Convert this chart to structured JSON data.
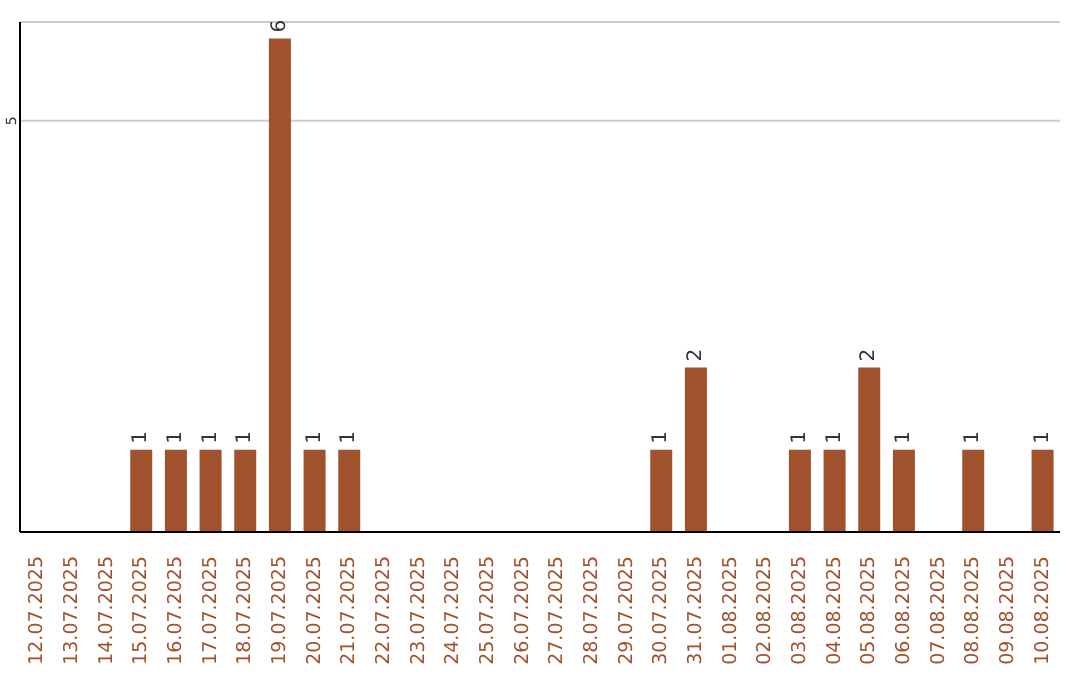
{
  "chart_data": {
    "type": "bar",
    "categories": [
      "12.07.2025",
      "13.07.2025",
      "14.07.2025",
      "15.07.2025",
      "16.07.2025",
      "17.07.2025",
      "18.07.2025",
      "19.07.2025",
      "20.07.2025",
      "21.07.2025",
      "22.07.2025",
      "23.07.2025",
      "24.07.2025",
      "25.07.2025",
      "26.07.2025",
      "27.07.2025",
      "28.07.2025",
      "29.07.2025",
      "30.07.2025",
      "31.07.2025",
      "01.08.2025",
      "02.08.2025",
      "03.08.2025",
      "04.08.2025",
      "05.08.2025",
      "06.08.2025",
      "07.08.2025",
      "08.08.2025",
      "09.08.2025",
      "10.08.2025"
    ],
    "values": [
      0,
      0,
      0,
      1,
      1,
      1,
      1,
      6,
      1,
      1,
      0,
      0,
      0,
      0,
      0,
      0,
      0,
      0,
      1,
      2,
      0,
      0,
      1,
      1,
      2,
      1,
      0,
      1,
      0,
      1
    ],
    "value_labels": [
      null,
      null,
      null,
      "1",
      "1",
      "1",
      "1",
      "6",
      "1",
      "1",
      null,
      null,
      null,
      null,
      null,
      null,
      null,
      null,
      "1",
      "2",
      null,
      null,
      "1",
      "1",
      "2",
      "1",
      null,
      "1",
      null,
      "1"
    ],
    "color": "#a0522d",
    "ylim": [
      0,
      6.2
    ],
    "yticks": [
      5
    ],
    "grid": "y"
  }
}
